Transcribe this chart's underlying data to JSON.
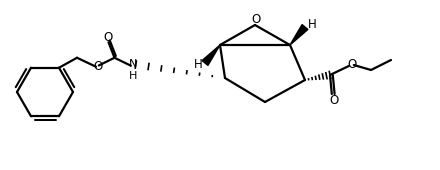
{
  "bg_color": "#ffffff",
  "line_color": "#000000",
  "line_width": 1.6,
  "font_size": 8.5,
  "figsize": [
    4.4,
    1.7
  ],
  "dpi": 100,
  "xlim": [
    0,
    44
  ],
  "ylim": [
    0,
    17
  ]
}
